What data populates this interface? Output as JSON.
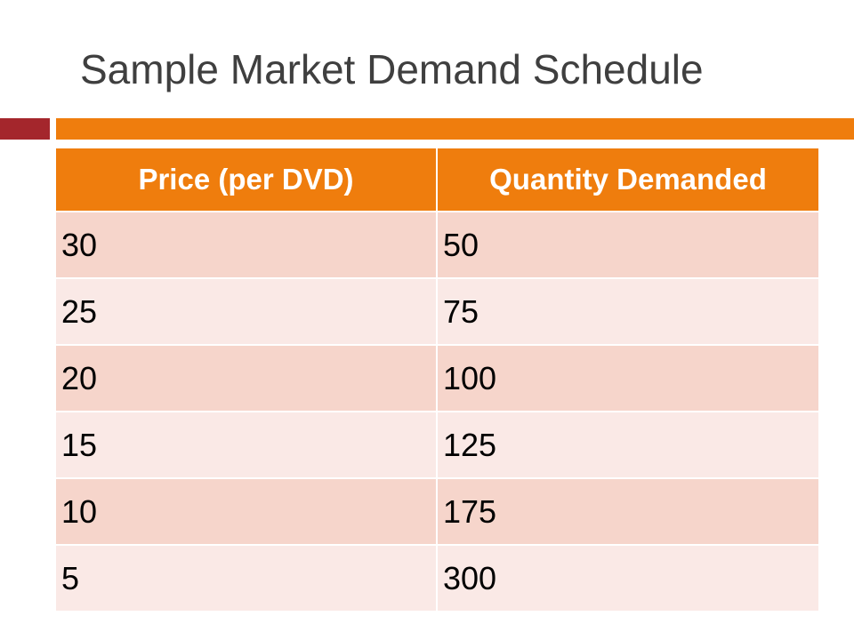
{
  "slide": {
    "title": "Sample Market Demand Schedule"
  },
  "colors": {
    "accent_dark_red": "#a4262c",
    "accent_orange": "#ef7d0d",
    "row_dark": "#f6d5cb",
    "row_light": "#fae9e6",
    "title_text": "#3f3f3f"
  },
  "table": {
    "headers": [
      "Price (per DVD)",
      "Quantity Demanded"
    ],
    "rows": [
      [
        "30",
        "50"
      ],
      [
        "25",
        "75"
      ],
      [
        "20",
        "100"
      ],
      [
        "15",
        "125"
      ],
      [
        "10",
        "175"
      ],
      [
        "5",
        "300"
      ]
    ]
  }
}
